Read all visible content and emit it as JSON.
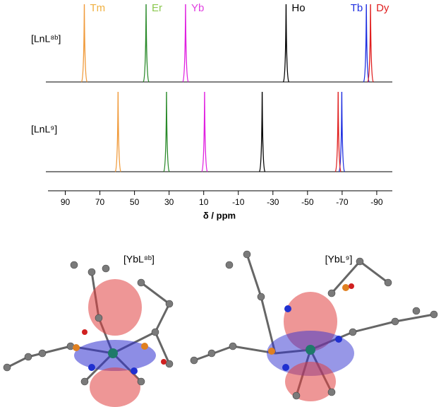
{
  "chart_data": {
    "type": "spectrum",
    "xlabel": "δ / ppm",
    "xlim": [
      100,
      -99
    ],
    "xticks": [
      90,
      70,
      50,
      30,
      10,
      -10,
      -30,
      -50,
      -70,
      -90
    ],
    "spectra": [
      "[LnL⁸ᵇ]",
      "[LnL⁹]"
    ],
    "series": [
      {
        "name": "Tm",
        "color": "#f09a3a",
        "values": [
          79,
          59.5
        ]
      },
      {
        "name": "Er",
        "color": "#2a8a2a",
        "values": [
          43.3,
          31.5
        ]
      },
      {
        "name": "Yb",
        "color": "#e020e0",
        "values": [
          20.5,
          9.5
        ]
      },
      {
        "name": "Ho",
        "color": "#000000",
        "values": [
          -37.6,
          -23.8
        ]
      },
      {
        "name": "Tb",
        "color": "#2030e0",
        "values": [
          -84,
          -69.8
        ]
      },
      {
        "name": "Dy",
        "color": "#e02020",
        "values": [
          -86.4,
          -67.7
        ]
      }
    ]
  },
  "structures": [
    "[YbL⁸ᵇ]",
    "[YbL⁹]"
  ]
}
